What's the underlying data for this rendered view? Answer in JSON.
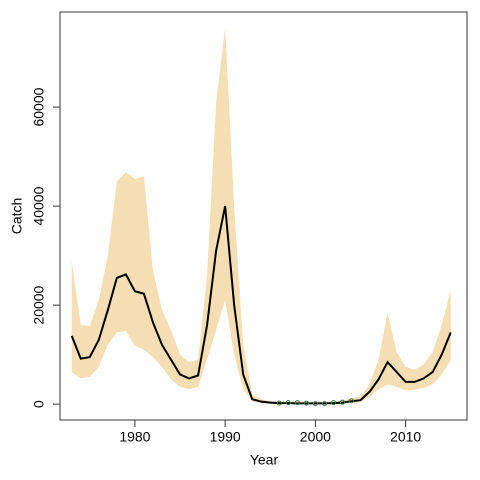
{
  "chart_data": {
    "type": "line",
    "xlabel": "Year",
    "ylabel": "Catch",
    "xlim": [
      1971.7,
      2016.8
    ],
    "ylim": [
      -3200,
      79200
    ],
    "xticks": [
      1980,
      1990,
      2000,
      2010
    ],
    "yticks": [
      0,
      20000,
      40000,
      60000
    ],
    "x": [
      1973,
      1974,
      1975,
      1976,
      1977,
      1978,
      1979,
      1980,
      1981,
      1982,
      1983,
      1984,
      1985,
      1986,
      1987,
      1988,
      1989,
      1990,
      1991,
      1992,
      1993,
      1994,
      1995,
      1996,
      1997,
      1998,
      1999,
      2000,
      2001,
      2002,
      2003,
      2004,
      2005,
      2006,
      2007,
      2008,
      2009,
      2010,
      2011,
      2012,
      2013,
      2014,
      2015
    ],
    "series": [
      {
        "kind": "band",
        "color": "#f5deb3",
        "upper": [
          29000,
          16000,
          15800,
          21000,
          30000,
          45000,
          46800,
          45500,
          46000,
          27000,
          19000,
          15000,
          10000,
          8500,
          9000,
          26000,
          61000,
          76000,
          40000,
          12000,
          2000,
          1000,
          600,
          500,
          500,
          450,
          450,
          450,
          450,
          500,
          700,
          1200,
          1500,
          4000,
          9000,
          18500,
          10500,
          7500,
          7000,
          8000,
          10500,
          16000,
          23000
        ],
        "lower": [
          6500,
          5200,
          5500,
          7500,
          12000,
          14500,
          14800,
          11800,
          11000,
          9500,
          7500,
          5000,
          3500,
          3000,
          3500,
          9000,
          15000,
          21000,
          10000,
          3000,
          500,
          200,
          100,
          50,
          50,
          30,
          30,
          30,
          30,
          50,
          100,
          200,
          400,
          1500,
          3000,
          4000,
          3500,
          2800,
          2900,
          3300,
          4000,
          6000,
          9000
        ]
      },
      {
        "kind": "line",
        "color": "#000000",
        "values": [
          13800,
          9200,
          9500,
          13000,
          19000,
          25500,
          26200,
          22800,
          22300,
          16500,
          12000,
          9000,
          6000,
          5200,
          5800,
          16000,
          31000,
          40000,
          20000,
          6000,
          1000,
          500,
          300,
          200,
          200,
          150,
          150,
          150,
          150,
          200,
          300,
          600,
          800,
          2500,
          5000,
          8500,
          6500,
          4500,
          4500,
          5200,
          6500,
          10000,
          14500
        ]
      },
      {
        "kind": "points",
        "color": "#2e7d32",
        "x": [
          1996,
          1997,
          1998,
          1999,
          2000,
          2001,
          2002,
          2003,
          2004
        ],
        "values": [
          200,
          300,
          300,
          200,
          100,
          100,
          300,
          400,
          700
        ]
      }
    ]
  }
}
